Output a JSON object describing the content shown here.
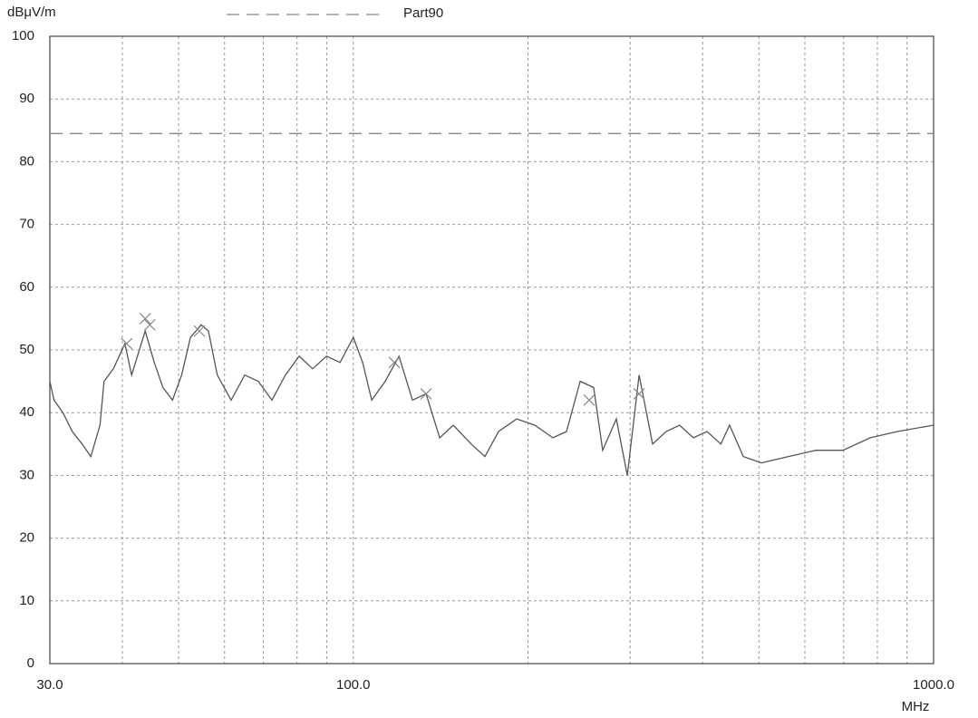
{
  "chart_data": {
    "type": "line",
    "xscale": "log",
    "grid": true,
    "ylabel": "dBμV/m",
    "xlabel": "MHz",
    "xlim": [
      30,
      1000
    ],
    "ylim": [
      0,
      100
    ],
    "xticks": [
      {
        "value": 30,
        "label": "30.0"
      },
      {
        "value": 100,
        "label": "100.0"
      },
      {
        "value": 1000,
        "label": "1000.0"
      }
    ],
    "xminorticks": [
      40,
      50,
      60,
      70,
      80,
      90,
      200,
      300,
      400,
      500,
      600,
      700,
      800,
      900
    ],
    "yticks": [
      0,
      10,
      20,
      30,
      40,
      50,
      60,
      70,
      80,
      90,
      100
    ],
    "series": [
      {
        "name": "Part90",
        "color": "#888888",
        "dash": true,
        "x": [
          30,
          1000
        ],
        "values": [
          84.5,
          84.5
        ]
      }
    ],
    "trace": {
      "color": "#555555",
      "x": [
        30,
        30.5,
        31.6,
        32.8,
        34.1,
        35.3,
        36.6,
        37.2,
        38.6,
        40.4,
        41.5,
        43.8,
        45.4,
        47,
        48.8,
        50.6,
        52.4,
        54.7,
        56.3,
        58.3,
        61.6,
        65,
        68.6,
        72.4,
        76.4,
        80.7,
        85.1,
        89.9,
        94.9,
        100,
        103.8,
        107.6,
        113.5,
        119.9,
        126.5,
        133.5,
        140.9,
        148.7,
        159.7,
        168.6,
        178,
        191.3,
        205.5,
        220.8,
        233,
        246,
        259.6,
        269,
        284,
        296.6,
        310.8,
        328,
        346,
        365,
        385.6,
        407,
        430,
        445,
        470,
        505,
        562,
        627,
        698,
        778,
        866,
        1000
      ],
      "values": [
        45,
        42,
        40,
        37,
        35,
        33,
        38,
        45,
        47,
        51,
        46,
        53,
        48,
        44,
        42,
        46,
        52,
        54,
        53,
        46,
        42,
        46,
        45,
        42,
        46,
        49,
        47,
        49,
        48,
        52,
        48,
        42,
        45,
        49,
        42,
        43,
        36,
        38,
        35,
        33,
        37,
        39,
        38,
        36,
        37,
        45,
        44,
        34,
        39,
        30,
        46,
        35,
        37,
        38,
        36,
        37,
        35,
        38,
        33,
        32,
        33,
        34,
        34,
        36,
        37,
        38
      ]
    },
    "markers": {
      "color": "#888888",
      "x": [
        40.7,
        43.8,
        44.6,
        54.3,
        117.7,
        133.5,
        255,
        310.8
      ],
      "values": [
        51,
        55,
        54,
        53,
        48,
        43,
        42,
        43
      ]
    }
  }
}
